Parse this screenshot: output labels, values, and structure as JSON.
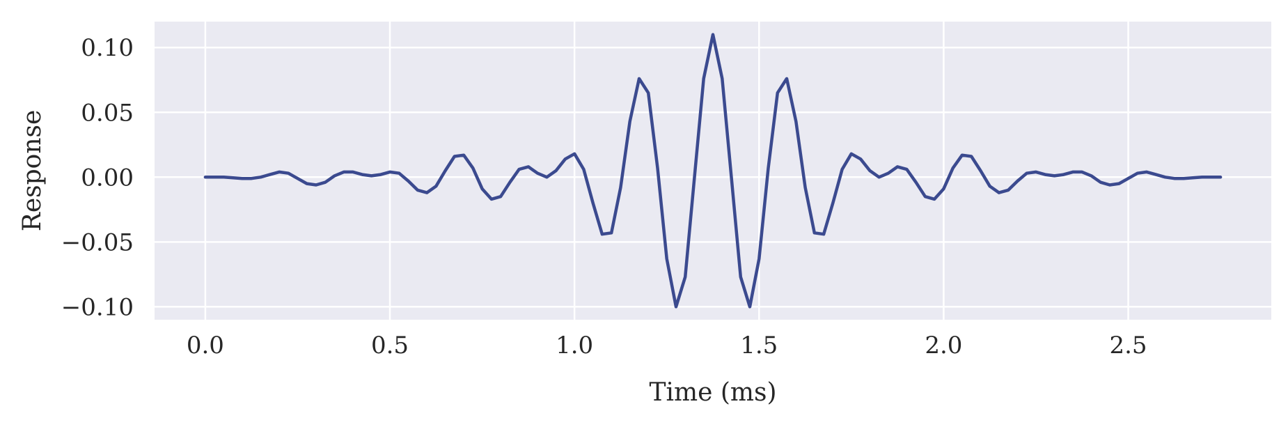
{
  "chart_data": {
    "type": "line",
    "title": "",
    "xlabel": "Time (ms)",
    "ylabel": "Response",
    "xlim": [
      -0.1375,
      2.8875
    ],
    "ylim": [
      -0.11,
      0.12
    ],
    "xticks": [
      0.0,
      0.5,
      1.0,
      1.5,
      2.0,
      2.5
    ],
    "xtick_labels": [
      "0.0",
      "0.5",
      "1.0",
      "1.5",
      "2.0",
      "2.5"
    ],
    "yticks": [
      0.1,
      0.05,
      0.0,
      -0.05,
      -0.1
    ],
    "ytick_labels": [
      "0.10",
      "0.05",
      "0.00",
      "−0.05",
      "−0.10"
    ],
    "grid": true,
    "background": "#eaeaf2",
    "colors": {
      "series": "#3b4a8f",
      "grid": "#ffffff",
      "text": "#262626"
    },
    "series": [
      {
        "x": [
          0.0,
          0.025,
          0.05,
          0.075,
          0.1,
          0.125,
          0.15,
          0.175,
          0.2,
          0.225,
          0.25,
          0.275,
          0.3,
          0.325,
          0.35,
          0.375,
          0.4,
          0.425,
          0.45,
          0.475,
          0.5,
          0.525,
          0.55,
          0.575,
          0.6,
          0.625,
          0.65,
          0.675,
          0.7,
          0.725,
          0.75,
          0.775,
          0.8,
          0.825,
          0.85,
          0.875,
          0.9,
          0.925,
          0.95,
          0.975,
          1.0,
          1.025,
          1.05,
          1.075,
          1.1,
          1.125,
          1.15,
          1.175,
          1.2,
          1.225,
          1.25,
          1.275,
          1.3,
          1.325,
          1.35,
          1.375,
          1.4,
          1.425,
          1.45,
          1.475,
          1.5,
          1.525,
          1.55,
          1.575,
          1.6,
          1.625,
          1.65,
          1.675,
          1.7,
          1.725,
          1.75,
          1.775,
          1.8,
          1.825,
          1.85,
          1.875,
          1.9,
          1.925,
          1.95,
          1.975,
          2.0,
          2.025,
          2.05,
          2.075,
          2.1,
          2.125,
          2.15,
          2.175,
          2.2,
          2.225,
          2.25,
          2.275,
          2.3,
          2.325,
          2.35,
          2.375,
          2.4,
          2.425,
          2.45,
          2.475,
          2.5,
          2.525,
          2.55,
          2.575,
          2.6,
          2.625,
          2.65,
          2.675,
          2.7,
          2.725,
          2.75
        ],
        "y": [
          0.0,
          0.0,
          0.0,
          -0.0005,
          -0.001,
          -0.001,
          0.0,
          0.002,
          0.004,
          0.003,
          -0.001,
          -0.005,
          -0.006,
          -0.004,
          0.001,
          0.004,
          0.004,
          0.002,
          0.001,
          0.002,
          0.004,
          0.003,
          -0.003,
          -0.01,
          -0.012,
          -0.007,
          0.005,
          0.016,
          0.017,
          0.007,
          -0.009,
          -0.017,
          -0.015,
          -0.004,
          0.006,
          0.008,
          0.003,
          0.0,
          0.005,
          0.014,
          0.018,
          0.006,
          -0.02,
          -0.044,
          -0.043,
          -0.008,
          0.043,
          0.076,
          0.065,
          0.007,
          -0.063,
          -0.1,
          -0.077,
          0.0,
          0.076,
          0.11,
          0.076,
          0.0,
          -0.077,
          -0.1,
          -0.063,
          0.007,
          0.065,
          0.076,
          0.043,
          -0.008,
          -0.043,
          -0.044,
          -0.02,
          0.006,
          0.018,
          0.014,
          0.005,
          0.0,
          0.003,
          0.008,
          0.006,
          -0.004,
          -0.015,
          -0.017,
          -0.009,
          0.007,
          0.017,
          0.016,
          0.005,
          -0.007,
          -0.012,
          -0.01,
          -0.003,
          0.003,
          0.004,
          0.002,
          0.001,
          0.002,
          0.004,
          0.004,
          0.001,
          -0.004,
          -0.006,
          -0.005,
          -0.001,
          0.003,
          0.004,
          0.002,
          0.0,
          -0.001,
          -0.001,
          -0.0005,
          0.0,
          0.0,
          0.0
        ]
      }
    ]
  }
}
